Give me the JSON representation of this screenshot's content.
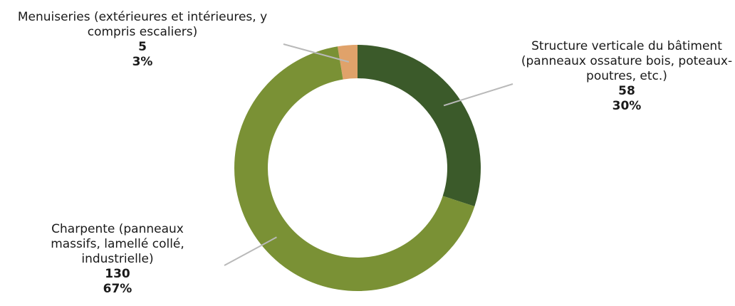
{
  "chart_data": {
    "type": "donut",
    "slices": [
      {
        "label": "Menuiseries (extérieures et intérieures, y compris escaliers)",
        "value": 5,
        "percent": "3%",
        "color": "#e0a26a"
      },
      {
        "label": "Structure verticale du bâtiment (panneaux ossature bois, poteaux-poutres, etc.)",
        "value": 58,
        "percent": "30%",
        "color": "#3b5a2a"
      },
      {
        "label": "Charpente (panneaux massifs, lamellé collé, industrielle)",
        "value": 130,
        "percent": "67%",
        "color": "#7a9135"
      }
    ],
    "leader_line_color": "#b9b9b9"
  }
}
